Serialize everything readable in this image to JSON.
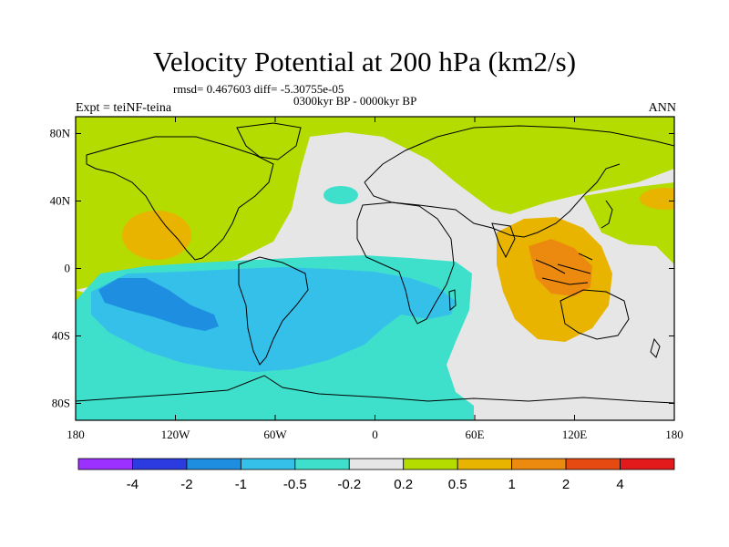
{
  "chart_data": {
    "type": "heatmap",
    "title": "Velocity Potential at 200 hPa (km2/s)",
    "stats_line": "rmsd= 0.467603 diff= -5.30755e-05",
    "period": "0300kyr BP - 0000kyr BP",
    "experiment": "Expt = teiNF-teina",
    "season": "ANN",
    "x_axis": {
      "range": [
        -180,
        180
      ],
      "tick_values": [
        -180,
        -120,
        -60,
        0,
        60,
        120,
        180
      ],
      "tick_labels": [
        "180",
        "120W",
        "60W",
        "0",
        "60E",
        "120E",
        "180"
      ]
    },
    "y_axis": {
      "range": [
        -90,
        90
      ],
      "tick_values": [
        80,
        40,
        0,
        -40,
        -80
      ],
      "tick_labels": [
        "80N",
        "40N",
        "0",
        "40S",
        "80S"
      ]
    },
    "colorbar": {
      "levels": [
        "-4",
        "-2",
        "-1",
        "-0.5",
        "-0.2",
        "0.2",
        "0.5",
        "1",
        "2",
        "4"
      ],
      "colors": [
        "#9b30ff",
        "#2b3be0",
        "#1e8fe0",
        "#35c0ea",
        "#3ee0cc",
        "#e6e6e6",
        "#b5dc00",
        "#e8b400",
        "#ec8a10",
        "#e64a10",
        "#e31a1c"
      ]
    },
    "regions": [
      {
        "value_class": "0.2 to 0.5",
        "description": "North Pacific / North America / North Atlantic band"
      },
      {
        "value_class": "0.5 to 1",
        "description": "Northeast Pacific maximum near 130W 25N"
      },
      {
        "value_class": "-0.5 to -0.2",
        "description": "South Pacific / South Atlantic / Southern Ocean"
      },
      {
        "value_class": "-1 to -0.5",
        "description": "Tropical South America and South Atlantic"
      },
      {
        "value_class": "-2 to -1",
        "description": "Southeast Pacific minimum"
      },
      {
        "value_class": "0.5 to 1",
        "description": "Maritime Continent / Indian Ocean / Australia"
      },
      {
        "value_class": "1 to 2",
        "description": "Maritime Continent core near 110E 0"
      }
    ]
  }
}
